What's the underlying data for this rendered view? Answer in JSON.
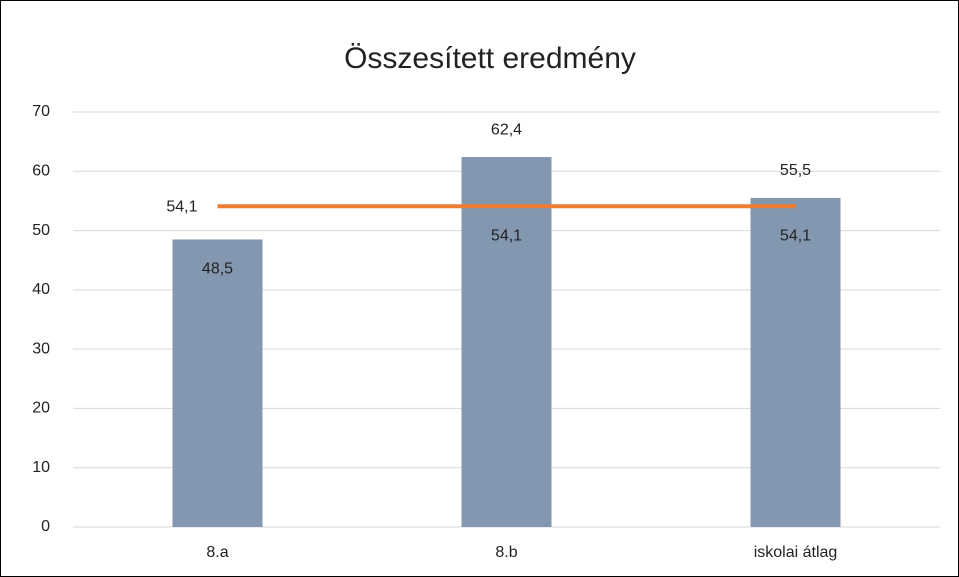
{
  "chart_data": {
    "type": "bar",
    "title": "Összesített eredmény",
    "categories": [
      "8.a",
      "8.b",
      "iskolai átlag"
    ],
    "series": [
      {
        "type": "bar",
        "color": "#8497b0",
        "values": [
          48.5,
          62.4,
          55.5
        ],
        "value_labels": [
          "48,5",
          "62,4",
          "55,5"
        ]
      },
      {
        "type": "line",
        "color": "#ed7d31",
        "values": [
          54.1,
          54.1,
          54.1
        ],
        "value_labels": [
          "54,1",
          "54,1",
          "54,1"
        ]
      }
    ],
    "ylim": [
      0,
      70
    ],
    "yticks": [
      0,
      10,
      20,
      30,
      40,
      50,
      60,
      70
    ],
    "grid": true
  }
}
